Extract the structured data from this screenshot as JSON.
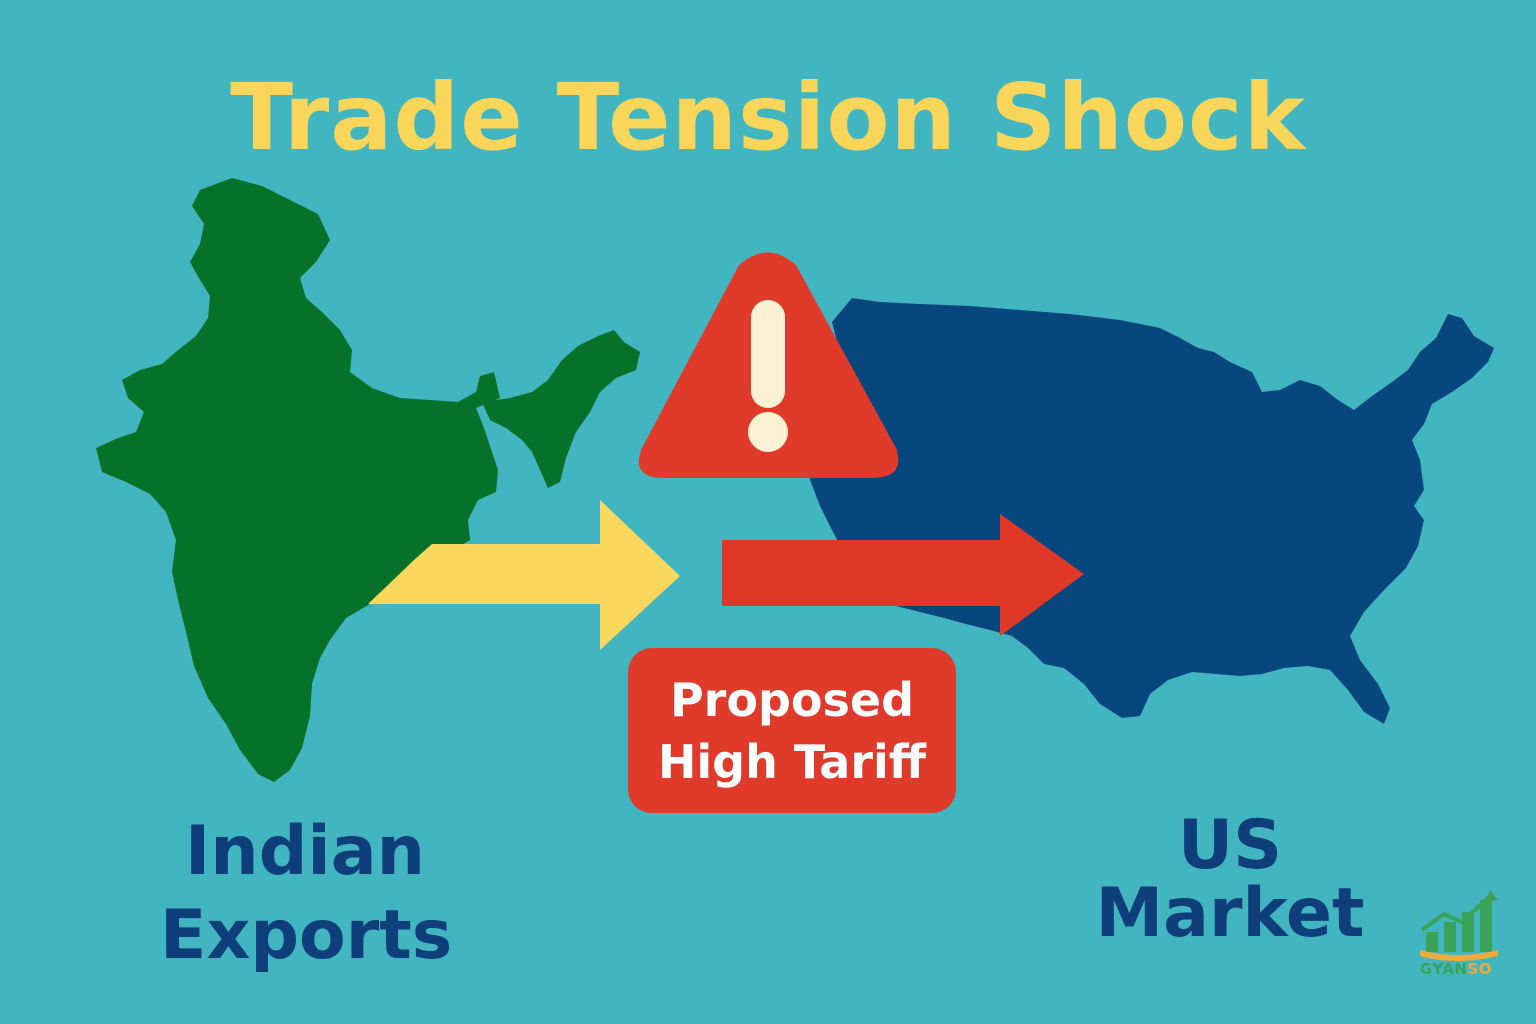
{
  "title": "Trade Tension Shock",
  "left_label": [
    "Indian",
    "Exports"
  ],
  "right_label": "US Market",
  "badge": [
    "Proposed",
    "High Tariff"
  ],
  "logo": {
    "part1": "GYAN",
    "part2": "SO"
  },
  "icons": [
    "india-map-icon",
    "usa-map-icon",
    "warning-triangle-icon",
    "export-arrow-icon",
    "tariff-arrow-icon",
    "logo-chart-icon"
  ],
  "colors": {
    "background": "#41b6c0",
    "title": "#f9d65a",
    "india": "#067128",
    "usa": "#08467e",
    "warning": "#e03a2a",
    "arrow_export": "#fbd75e",
    "arrow_tariff": "#e03826",
    "label": "#0e3f7a"
  }
}
